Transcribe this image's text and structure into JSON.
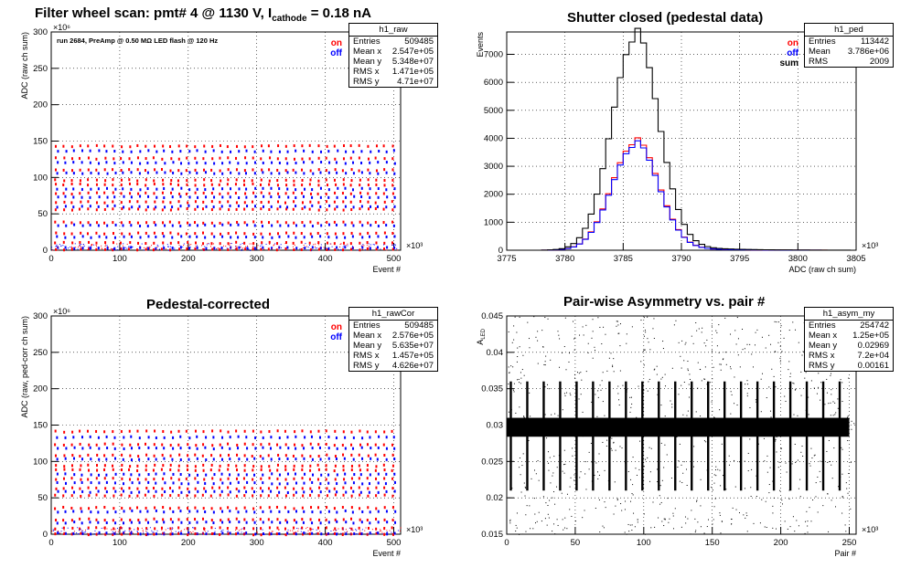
{
  "chart_data": [
    {
      "type": "scatter",
      "title_parts": [
        "Filter wheel scan: pmt#   4 @  1130 V, I",
        "cathode",
        " = 0.18 nA"
      ],
      "note": "run 2684, PreAmp @ 0.50 MΩ  LED flash @  120 Hz",
      "xlabel": "Event #",
      "ylabel": "ADC (raw ch sum)",
      "x_exp": "×10³",
      "y_exp": "×10⁶",
      "xlim": [
        0,
        510
      ],
      "ylim": [
        0,
        300
      ],
      "xticks": [
        "0",
        "100",
        "200",
        "300",
        "400",
        "500"
      ],
      "yticks": [
        "0",
        "50",
        "100",
        "150",
        "200",
        "250",
        "300"
      ],
      "legend": [
        {
          "label": "on",
          "color": "#ff0000"
        },
        {
          "label": "off",
          "color": "#0000ff"
        }
      ],
      "stats": {
        "name": "h1_raw",
        "rows": [
          [
            "Entries",
            "509485"
          ],
          [
            "Mean x",
            "2.547e+05"
          ],
          [
            "Mean y",
            "5.348e+07"
          ],
          [
            "RMS x",
            "1.471e+05"
          ],
          [
            "RMS y",
            "4.71e+07"
          ]
        ]
      },
      "series": [
        {
          "name": "on",
          "color": "#ff0000",
          "y_levels": [
            145,
            128,
            112,
            98,
            92,
            80,
            68,
            58,
            40,
            25,
            12,
            3
          ]
        },
        {
          "name": "off",
          "color": "#0000ff",
          "y_levels": [
            138,
            122,
            108,
            86,
            75,
            62,
            36,
            20,
            5
          ]
        }
      ],
      "period": 24
    },
    {
      "type": "line",
      "title": "Shutter closed (pedestal data)",
      "xlabel": "ADC (raw ch sum)",
      "ylabel": "Events",
      "x_exp": "×10³",
      "xlim": [
        3775,
        3805
      ],
      "ylim": [
        0,
        7800
      ],
      "xticks": [
        "3775",
        "3780",
        "3785",
        "3790",
        "3795",
        "3800",
        "3805"
      ],
      "yticks": [
        "0",
        "1000",
        "2000",
        "3000",
        "4000",
        "5000",
        "6000",
        "7000"
      ],
      "legend": [
        {
          "label": "on",
          "color": "#ff0000"
        },
        {
          "label": "off",
          "color": "#0000ff"
        },
        {
          "label": "sum",
          "color": "#000000"
        }
      ],
      "stats": {
        "name": "h1_ped",
        "rows": [
          [
            "Entries",
            "113442"
          ],
          [
            "Mean",
            "3.786e+06"
          ],
          [
            "RMS",
            "2009"
          ]
        ]
      },
      "series": [
        {
          "name": "on",
          "color": "#ff0000",
          "center": 3786.0,
          "peak": 3800,
          "sigma": 2.0
        },
        {
          "name": "off",
          "color": "#0000ff",
          "center": 3786.0,
          "peak": 3700,
          "sigma": 2.0
        },
        {
          "name": "sum",
          "color": "#000000",
          "center": 3786.0,
          "peak": 7500,
          "sigma": 2.0
        }
      ],
      "bin_width": 0.5
    },
    {
      "type": "scatter",
      "title": "Pedestal-corrected",
      "xlabel": "Event #",
      "ylabel": "ADC (raw, ped-corr ch sum)",
      "x_exp": "×10³",
      "y_exp": "×10⁶",
      "xlim": [
        0,
        510
      ],
      "ylim": [
        0,
        300
      ],
      "xticks": [
        "0",
        "100",
        "200",
        "300",
        "400",
        "500"
      ],
      "yticks": [
        "0",
        "50",
        "100",
        "150",
        "200",
        "250",
        "300"
      ],
      "legend": [
        {
          "label": "on",
          "color": "#ff0000"
        },
        {
          "label": "off",
          "color": "#0000ff"
        }
      ],
      "stats": {
        "name": "h1_rawCor",
        "rows": [
          [
            "Entries",
            "509485"
          ],
          [
            "Mean x",
            "2.576e+05"
          ],
          [
            "Mean y",
            "5.635e+07"
          ],
          [
            "RMS x",
            "1.457e+05"
          ],
          [
            "RMS y",
            "4.626e+07"
          ]
        ]
      },
      "series": [
        {
          "name": "on",
          "color": "#ff0000",
          "y_levels": [
            143,
            125,
            110,
            96,
            90,
            78,
            65,
            55,
            38,
            22,
            10,
            2
          ]
        },
        {
          "name": "off",
          "color": "#0000ff",
          "y_levels": [
            135,
            120,
            105,
            84,
            72,
            60,
            33,
            18,
            3
          ]
        }
      ],
      "period": 24
    },
    {
      "type": "scatter",
      "title": "Pair-wise Asymmetry vs. pair #",
      "xlabel": "Pair #",
      "ylabel": "A_LED",
      "x_exp": "×10³",
      "xlim": [
        0,
        255
      ],
      "ylim": [
        0.015,
        0.045
      ],
      "xticks": [
        "0",
        "50",
        "100",
        "150",
        "200",
        "250"
      ],
      "yticks": [
        "0.015",
        "0.02",
        "0.025",
        "0.03",
        "0.035",
        "0.04",
        "0.045"
      ],
      "stats": {
        "name": "h1_asym_my",
        "rows": [
          [
            "Entries",
            "254742"
          ],
          [
            "Mean x",
            "1.25e+05"
          ],
          [
            "Mean y",
            "0.02969"
          ],
          [
            "RMS x",
            "7.2e+04"
          ],
          [
            "RMS y",
            "0.00161"
          ]
        ]
      },
      "band": {
        "center": 0.0297,
        "half_width": 0.0013,
        "x_end": 250
      },
      "spikes": {
        "period": 12,
        "low": 0.021,
        "high": 0.036
      }
    }
  ]
}
